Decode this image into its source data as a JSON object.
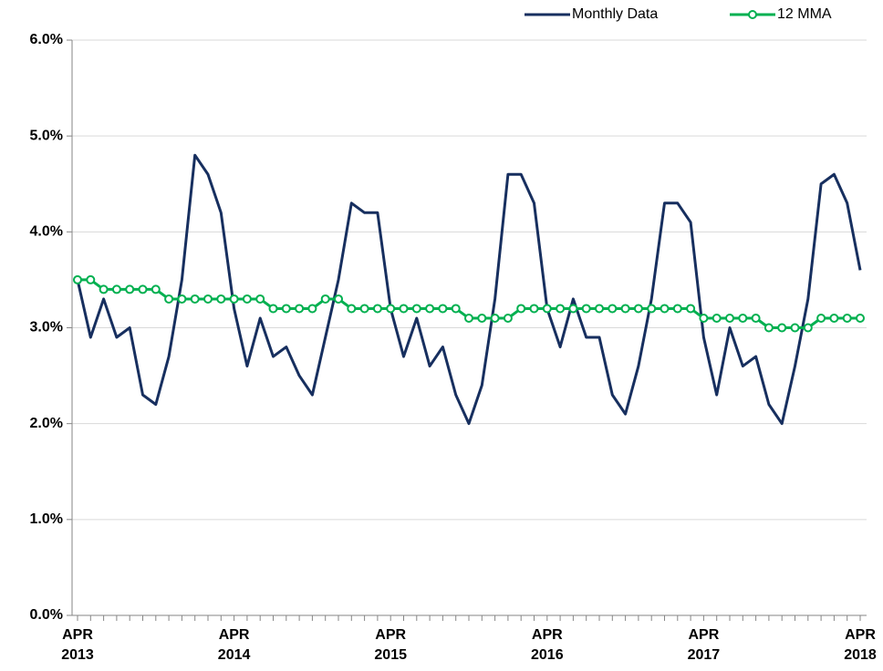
{
  "chart_data": {
    "type": "line",
    "categories": [
      "APR 2013",
      null,
      null,
      null,
      null,
      null,
      null,
      null,
      null,
      null,
      null,
      null,
      "APR 2014",
      null,
      null,
      null,
      null,
      null,
      null,
      null,
      null,
      null,
      null,
      null,
      "APR 2015",
      null,
      null,
      null,
      null,
      null,
      null,
      null,
      null,
      null,
      null,
      null,
      "APR 2016",
      null,
      null,
      null,
      null,
      null,
      null,
      null,
      null,
      null,
      null,
      null,
      "APR 2017",
      null,
      null,
      null,
      null,
      null,
      null,
      null,
      null,
      null,
      null,
      null,
      "APR 2018"
    ],
    "series": [
      {
        "name": "Monthly Data",
        "color": "#172f5f",
        "marker": false,
        "values": [
          3.5,
          2.9,
          3.3,
          2.9,
          3.0,
          2.3,
          2.2,
          2.7,
          3.5,
          4.8,
          4.6,
          4.2,
          3.2,
          2.6,
          3.1,
          2.7,
          2.8,
          2.5,
          2.3,
          2.9,
          3.5,
          4.3,
          4.2,
          4.2,
          3.2,
          2.7,
          3.1,
          2.6,
          2.8,
          2.3,
          2.0,
          2.4,
          3.3,
          4.6,
          4.6,
          4.3,
          3.2,
          2.8,
          3.3,
          2.9,
          2.9,
          2.3,
          2.1,
          2.6,
          3.3,
          4.3,
          4.3,
          4.1,
          2.9,
          2.3,
          3.0,
          2.6,
          2.7,
          2.2,
          2.0,
          2.6,
          3.3,
          4.5,
          4.6,
          4.3,
          3.6
        ]
      },
      {
        "name": "12 MMA",
        "color": "#00b050",
        "marker": true,
        "values": [
          3.5,
          3.5,
          3.4,
          3.4,
          3.4,
          3.4,
          3.4,
          3.3,
          3.3,
          3.3,
          3.3,
          3.3,
          3.3,
          3.3,
          3.3,
          3.2,
          3.2,
          3.2,
          3.2,
          3.3,
          3.3,
          3.2,
          3.2,
          3.2,
          3.2,
          3.2,
          3.2,
          3.2,
          3.2,
          3.2,
          3.1,
          3.1,
          3.1,
          3.1,
          3.2,
          3.2,
          3.2,
          3.2,
          3.2,
          3.2,
          3.2,
          3.2,
          3.2,
          3.2,
          3.2,
          3.2,
          3.2,
          3.2,
          3.1,
          3.1,
          3.1,
          3.1,
          3.1,
          3.0,
          3.0,
          3.0,
          3.0,
          3.1,
          3.1,
          3.1,
          3.1
        ]
      }
    ],
    "ylim": [
      0,
      6
    ],
    "yticks": [
      {
        "value": 0,
        "label": "0.0%"
      },
      {
        "value": 1,
        "label": "1.0%"
      },
      {
        "value": 2,
        "label": "2.0%"
      },
      {
        "value": 3,
        "label": "3.0%"
      },
      {
        "value": 4,
        "label": "4.0%"
      },
      {
        "value": 5,
        "label": "5.0%"
      },
      {
        "value": 6,
        "label": "6.0%"
      }
    ],
    "grid": true,
    "legend": "top-right"
  }
}
